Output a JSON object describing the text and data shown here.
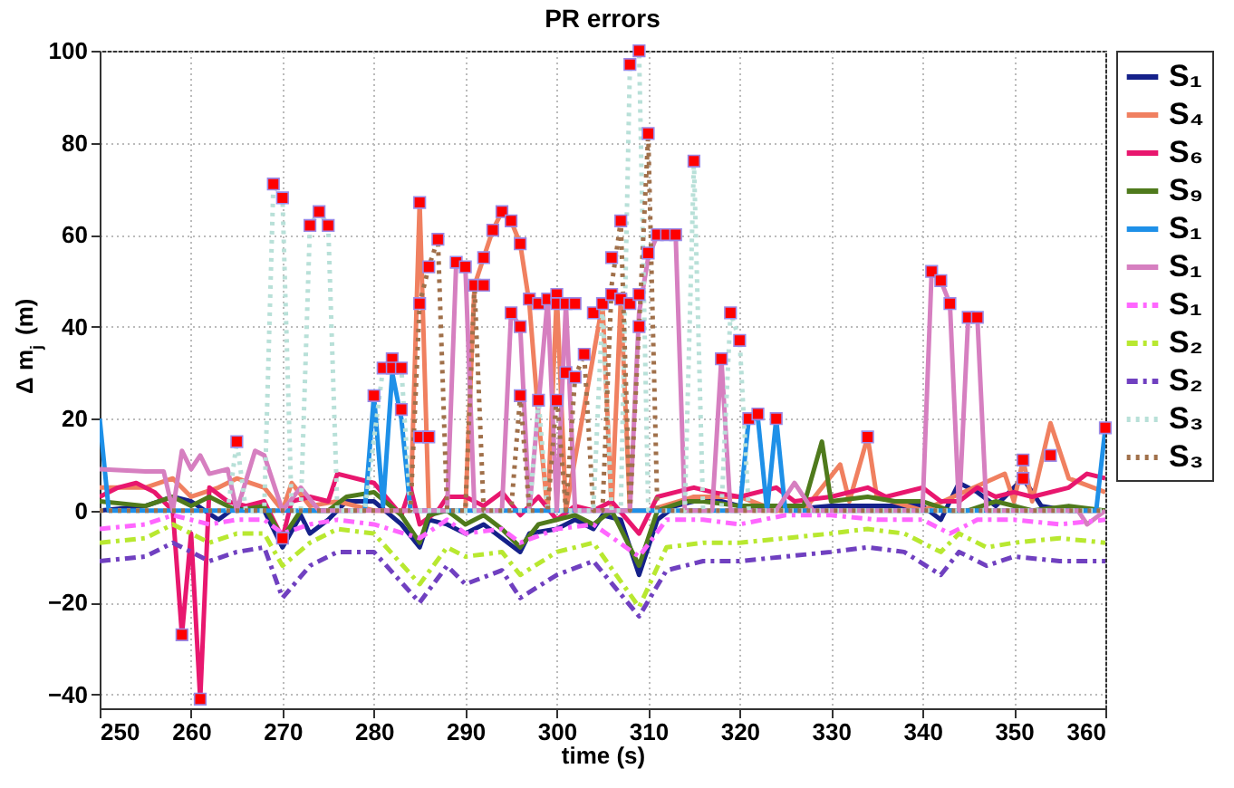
{
  "chart_data": {
    "type": "line",
    "title": "PR errors",
    "xlabel": "time (s)",
    "ylabel": "Δ m$_{j}$ (m)",
    "xlim": [
      250,
      360
    ],
    "ylim": [
      -43,
      100
    ],
    "xticks": [
      250,
      260,
      270,
      280,
      290,
      300,
      310,
      320,
      330,
      340,
      350,
      360
    ],
    "yticks": [
      -40,
      -20,
      0,
      20,
      40,
      60,
      80,
      100
    ],
    "grid": true,
    "legend": "right",
    "series": [
      {
        "name": "S₁",
        "color": "#15218a",
        "line_style": "solid",
        "x": [
          250,
          255,
          258,
          260,
          263,
          265,
          268,
          270,
          272,
          273,
          275,
          277,
          280,
          283,
          285,
          286,
          288,
          290,
          292,
          294,
          296,
          297,
          300,
          302,
          304,
          305,
          307,
          309,
          311,
          313,
          315,
          318,
          320,
          324,
          330,
          334,
          340,
          342,
          344,
          346,
          348,
          351,
          353,
          356,
          360
        ],
        "values": [
          0,
          1,
          3,
          2,
          -2,
          1,
          0,
          -8,
          -1,
          -5,
          -2,
          2,
          2,
          -3,
          -8,
          -2,
          -3,
          -5,
          -3,
          -6,
          -9,
          -5,
          -4,
          -2,
          -4,
          -1,
          -2,
          -14,
          -2,
          1,
          2,
          2,
          1,
          0,
          1,
          1,
          1,
          -2,
          6,
          4,
          1,
          7,
          1,
          0,
          0
        ]
      },
      {
        "name": "S₄",
        "color": "#f08060",
        "line_style": "solid",
        "x": [
          250,
          255,
          258,
          260,
          263,
          265,
          268,
          270,
          271,
          273,
          276,
          280,
          284,
          285,
          286,
          290,
          291,
          292,
          293,
          294,
          295,
          296,
          297,
          298,
          299,
          300,
          301,
          305,
          306,
          307,
          308,
          310,
          315,
          320,
          324,
          327,
          331,
          332,
          334,
          335,
          340,
          349,
          350,
          351,
          352,
          354,
          356,
          360
        ],
        "values": [
          5,
          5,
          7,
          3,
          5,
          7,
          5,
          0,
          6,
          1,
          2,
          0,
          0,
          67,
          0,
          0,
          49,
          55,
          61,
          65,
          63,
          58,
          45,
          20,
          0,
          47,
          0,
          45,
          0,
          46,
          0,
          0,
          3,
          3,
          0,
          0,
          10,
          2,
          16,
          3,
          0,
          8,
          2,
          11,
          2,
          19,
          7,
          4
        ]
      },
      {
        "name": "S₆",
        "color": "#e8176e",
        "line_style": "solid",
        "x": [
          250,
          252,
          254,
          256,
          258,
          259,
          260,
          261,
          262,
          264,
          266,
          268,
          270,
          271,
          273,
          275,
          276,
          280,
          283,
          284,
          285,
          287,
          288,
          290,
          292,
          294,
          296,
          298,
          300,
          302,
          304,
          306,
          309,
          311,
          313,
          315,
          317,
          320,
          324,
          326,
          330,
          334,
          336,
          340,
          342,
          344,
          346,
          348,
          350,
          352,
          356,
          358,
          360
        ],
        "values": [
          3,
          5,
          6,
          4,
          0,
          -27,
          -5,
          -41,
          5,
          2,
          1,
          2,
          -6,
          2,
          3,
          2,
          8,
          6,
          -1,
          5,
          -3,
          0,
          3,
          3,
          1,
          4,
          -1,
          3,
          -2,
          1,
          0,
          2,
          -5,
          3,
          4,
          5,
          4,
          3,
          5,
          2,
          3,
          5,
          3,
          5,
          2,
          2,
          5,
          3,
          4,
          3,
          5,
          8,
          7
        ]
      },
      {
        "name": "S₉",
        "color": "#4f7a1c",
        "line_style": "solid",
        "x": [
          250,
          255,
          258,
          260,
          262,
          265,
          268,
          270,
          272,
          275,
          277,
          280,
          283,
          285,
          286,
          288,
          290,
          292,
          294,
          296,
          298,
          300,
          302,
          304,
          306,
          309,
          311,
          314,
          316,
          320,
          324,
          327,
          329,
          330,
          334,
          337,
          340,
          343,
          345,
          348,
          352,
          356,
          360
        ],
        "values": [
          2,
          1,
          3,
          1,
          3,
          0,
          1,
          -6,
          0,
          0,
          3,
          4,
          -1,
          -7,
          -1,
          0,
          -3,
          -1,
          -4,
          -8,
          -3,
          -2,
          -1,
          -3,
          0,
          -12,
          0,
          2,
          2,
          1,
          1,
          1,
          15,
          2,
          3,
          2,
          2,
          0,
          0,
          2,
          0,
          1,
          0
        ]
      },
      {
        "name": "S₁",
        "color": "#1e90e8",
        "line_style": "solid",
        "x": [
          250,
          251,
          279,
          280,
          281,
          282,
          283,
          284,
          320,
          321,
          322,
          323,
          324,
          325,
          359,
          360
        ],
        "values": [
          20,
          0,
          0,
          25,
          1,
          30,
          20,
          0,
          0,
          20,
          20,
          0,
          20,
          0,
          0,
          18
        ]
      },
      {
        "name": "S₁",
        "color": "#d67fc0",
        "line_style": "solid",
        "x": [
          250,
          255,
          257,
          258,
          259,
          260,
          261,
          262,
          264,
          265,
          267,
          268,
          270,
          272,
          274,
          288,
          289,
          290,
          291,
          294,
          295,
          296,
          297,
          299,
          300,
          301,
          302,
          308,
          309,
          310,
          311,
          312,
          313,
          314,
          317,
          318,
          319,
          324,
          326,
          328,
          340,
          341,
          342,
          343,
          344,
          345,
          346,
          347,
          357,
          358,
          360
        ],
        "values": [
          9,
          8.5,
          8.5,
          0,
          13,
          9,
          12,
          8,
          9,
          0,
          13,
          12,
          0,
          5,
          0,
          0,
          54,
          53,
          0,
          0,
          43,
          40,
          0,
          46,
          0,
          45,
          0,
          0,
          43,
          55,
          60,
          60,
          60,
          0,
          0,
          33,
          0,
          0,
          6,
          0,
          0,
          52,
          50,
          45,
          0,
          42,
          42,
          0,
          0,
          -3,
          0
        ]
      },
      {
        "name": "S₁",
        "color": "#ff66ff",
        "line_style": "dashdot",
        "x": [
          250,
          255,
          258,
          262,
          265,
          268,
          270,
          273,
          276,
          280,
          285,
          288,
          290,
          294,
          296,
          300,
          304,
          309,
          312,
          316,
          320,
          325,
          330,
          335,
          340,
          343,
          346,
          350,
          355,
          360
        ],
        "values": [
          -4,
          -3,
          -1,
          -3,
          -2,
          -2,
          -5,
          -3,
          -2,
          -3,
          -6,
          -2,
          -5,
          -4,
          -7,
          -4,
          -3,
          -10,
          -2,
          -2,
          -3,
          -1,
          -1,
          -2,
          -2,
          -5,
          -2,
          -2,
          -3,
          -2
        ]
      },
      {
        "name": "S₂",
        "color": "#b8e830",
        "line_style": "dashdot",
        "x": [
          250,
          255,
          258,
          262,
          265,
          268,
          270,
          273,
          276,
          280,
          285,
          288,
          290,
          294,
          296,
          300,
          304,
          309,
          312,
          316,
          320,
          325,
          330,
          334,
          338,
          342,
          344,
          347,
          350,
          355,
          360
        ],
        "values": [
          -7,
          -6,
          -3,
          -7,
          -5,
          -5,
          -12,
          -7,
          -4,
          -5,
          -16,
          -8,
          -10,
          -9,
          -14,
          -9,
          -7,
          -21,
          -8,
          -7,
          -7,
          -6,
          -5,
          -4,
          -5,
          -9,
          -5,
          -8,
          -7,
          -6,
          -7
        ]
      },
      {
        "name": "S₂",
        "color": "#7040c0",
        "line_style": "dashdot",
        "x": [
          250,
          255,
          258,
          262,
          265,
          268,
          270,
          273,
          276,
          280,
          285,
          288,
          290,
          294,
          296,
          300,
          304,
          309,
          312,
          316,
          320,
          325,
          330,
          334,
          338,
          342,
          344,
          347,
          350,
          355,
          360
        ],
        "values": [
          -11,
          -10,
          -7,
          -11,
          -9,
          -8,
          -19,
          -12,
          -9,
          -9,
          -20,
          -12,
          -16,
          -13,
          -19,
          -14,
          -11,
          -23,
          -13,
          -11,
          -11,
          -10,
          -9,
          -8,
          -9,
          -14,
          -9,
          -12,
          -10,
          -11,
          -11
        ]
      },
      {
        "name": "S₃",
        "color": "#b8e0d8",
        "line_style": "dotted",
        "x": [
          250,
          264,
          265,
          266,
          268,
          269,
          270,
          271,
          272,
          273,
          274,
          275,
          276,
          279,
          281,
          282,
          283,
          284,
          297,
          298,
          299,
          304,
          305,
          306,
          307,
          308,
          309,
          310,
          314,
          315,
          316,
          318,
          319,
          320,
          321,
          360
        ],
        "values": [
          0,
          0,
          15,
          0,
          0,
          71,
          68,
          0,
          0,
          62,
          65,
          62,
          0,
          0,
          31,
          33,
          31,
          0,
          0,
          24,
          0,
          0,
          44,
          0,
          0,
          97,
          100,
          0,
          0,
          76,
          0,
          0,
          43,
          37,
          0,
          0
        ]
      },
      {
        "name": "S₃",
        "color": "#a0704a",
        "line_style": "dotted",
        "x": [
          250,
          284,
          285,
          286,
          287,
          288,
          290,
          291,
          292,
          295,
          296,
          297,
          299,
          300,
          301,
          302,
          303,
          304,
          305,
          306,
          307,
          308,
          309,
          310,
          311,
          360
        ],
        "values": [
          0,
          0,
          45,
          53,
          59,
          0,
          0,
          49,
          0,
          0,
          25,
          0,
          0,
          25,
          0,
          29,
          34,
          0,
          0,
          49,
          63,
          0,
          40,
          82,
          0,
          0
        ]
      },
      {
        "type": "scatter",
        "color": "#ff0000",
        "marker": "square",
        "x": [
          259,
          261,
          265,
          269,
          270,
          270,
          273,
          274,
          275,
          280,
          281,
          282,
          282,
          283,
          283,
          285,
          285,
          285,
          286,
          286,
          287,
          289,
          290,
          291,
          292,
          292,
          293,
          294,
          295,
          295,
          296,
          296,
          296,
          297,
          298,
          298,
          299,
          300,
          300,
          300,
          301,
          301,
          302,
          302,
          303,
          304,
          305,
          306,
          306,
          307,
          307,
          308,
          308,
          309,
          309,
          309,
          310,
          310,
          311,
          312,
          313,
          315,
          318,
          319,
          320,
          321,
          322,
          324,
          334,
          341,
          342,
          343,
          345,
          346,
          351,
          351,
          354,
          360
        ],
        "values": [
          -27,
          -41,
          15,
          71,
          68,
          -6,
          62,
          65,
          62,
          25,
          31,
          33,
          31,
          31,
          22,
          67,
          45,
          16,
          16,
          53,
          59,
          54,
          53,
          49,
          49,
          55,
          61,
          65,
          63,
          43,
          58,
          40,
          25,
          46,
          24,
          45,
          46,
          47,
          45,
          24,
          45,
          30,
          45,
          29,
          34,
          43,
          45,
          55,
          47,
          63,
          46,
          97,
          45,
          100,
          40,
          47,
          82,
          56,
          60,
          60,
          60,
          76,
          33,
          43,
          37,
          20,
          21,
          20,
          16,
          52,
          50,
          45,
          42,
          42,
          11,
          7,
          12,
          18
        ]
      }
    ]
  }
}
